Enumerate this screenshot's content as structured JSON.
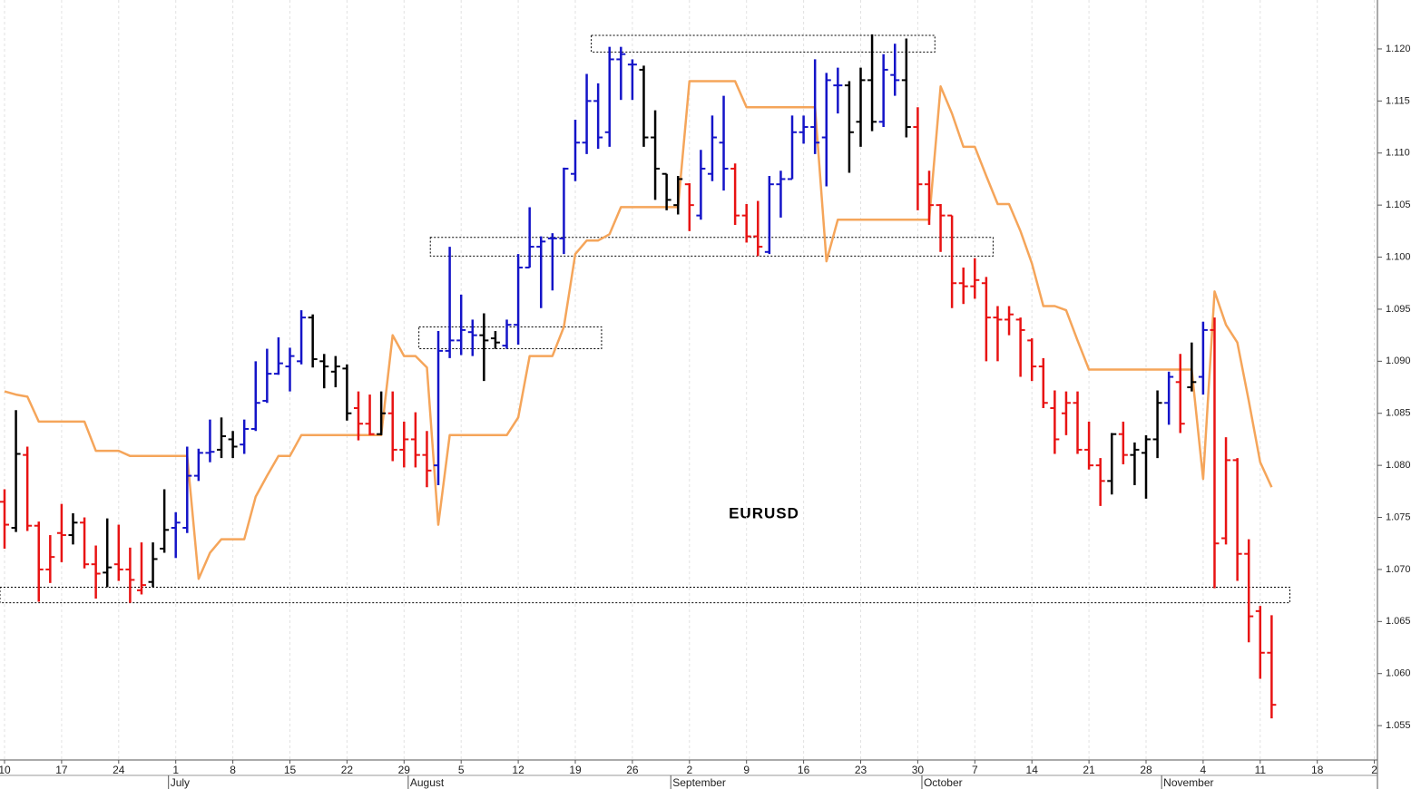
{
  "chart_data": {
    "type": "ohlc",
    "title": "EURUSD",
    "categories": [
      "10",
      null,
      null,
      null,
      null,
      "17",
      null,
      null,
      null,
      null,
      "24",
      null,
      null,
      null,
      null,
      "1",
      null,
      null,
      null,
      null,
      "8",
      null,
      null,
      null,
      null,
      "15",
      null,
      null,
      null,
      null,
      "22",
      null,
      null,
      null,
      null,
      "29",
      null,
      null,
      null,
      null,
      "5",
      null,
      null,
      null,
      null,
      "12",
      null,
      null,
      null,
      null,
      "19",
      null,
      null,
      null,
      null,
      "26",
      null,
      null,
      null,
      null,
      "2",
      null,
      null,
      null,
      null,
      "9",
      null,
      null,
      null,
      null,
      "16",
      null,
      null,
      null,
      null,
      "23",
      null,
      null,
      null,
      null,
      "30",
      null,
      null,
      null,
      null,
      "7",
      null,
      null,
      null,
      null,
      "14",
      null,
      null,
      null,
      null,
      "21",
      null,
      null,
      null,
      null,
      "28",
      null,
      null,
      null,
      null,
      "4",
      null,
      null,
      null,
      null,
      "11",
      null,
      null,
      null,
      null,
      "18",
      null,
      null,
      null,
      null,
      "2"
    ],
    "months": [
      null,
      null,
      null,
      null,
      null,
      null,
      null,
      null,
      null,
      null,
      null,
      null,
      null,
      null,
      null,
      "July",
      null,
      null,
      null,
      null,
      null,
      null,
      null,
      null,
      null,
      null,
      null,
      null,
      null,
      null,
      null,
      null,
      null,
      null,
      null,
      null,
      "August",
      null,
      null,
      null,
      null,
      null,
      null,
      null,
      null,
      null,
      null,
      null,
      null,
      null,
      null,
      null,
      null,
      null,
      null,
      null,
      null,
      null,
      null,
      "September",
      null,
      null,
      null,
      null,
      null,
      null,
      null,
      null,
      null,
      null,
      null,
      null,
      null,
      null,
      null,
      null,
      null,
      null,
      null,
      null,
      null,
      "October",
      null,
      null,
      null,
      null,
      null,
      null,
      null,
      null,
      null,
      null,
      null,
      null,
      null,
      null,
      null,
      null,
      null,
      null,
      null,
      null,
      "November",
      null,
      null,
      null,
      null,
      null,
      null,
      null,
      null,
      null,
      null,
      null,
      null,
      null,
      null,
      null,
      null,
      null,
      null
    ],
    "open": [
      1.0765,
      1.074,
      1.081,
      1.0742,
      1.07,
      1.0735,
      1.0733,
      1.0745,
      1.0705,
      1.0697,
      1.0705,
      1.07,
      1.068,
      1.0688,
      1.072,
      1.074,
      1.074,
      1.079,
      1.0812,
      1.0815,
      1.0825,
      1.082,
      1.0835,
      1.0862,
      1.0888,
      1.0895,
      1.09,
      1.0942,
      1.09,
      1.089,
      1.0893,
      1.0855,
      1.084,
      1.083,
      1.085,
      1.0815,
      1.0825,
      1.081,
      1.08,
      1.091,
      1.092,
      1.0928,
      1.0925,
      1.0922,
      1.0915,
      1.0935,
      1.099,
      1.101,
      1.1018,
      1.1018,
      1.108,
      1.111,
      1.115,
      1.112,
      1.119,
      1.1185,
      1.118,
      1.1115,
      1.108,
      1.105,
      1.107,
      1.104,
      1.108,
      1.111,
      1.1085,
      1.104,
      1.102,
      1.1005,
      1.107,
      1.1075,
      1.112,
      1.1125,
      1.1115,
      1.1165,
      1.1165,
      1.113,
      1.117,
      1.113,
      1.1175,
      1.117,
      1.1125,
      1.107,
      1.105,
      1.104,
      1.0975,
      1.0972,
      1.0975,
      1.0942,
      1.094,
      1.094,
      1.092,
      1.0895,
      1.0855,
      1.085,
      1.086,
      1.0815,
      1.08,
      1.0785,
      1.083,
      1.081,
      1.0812,
      1.0825,
      1.086,
      1.088,
      1.0875,
      1.0885,
      1.093,
      1.073,
      1.0805,
      1.0715,
      1.066,
      1.062,
      null,
      null,
      null,
      null,
      null,
      null,
      null,
      null,
      null
    ],
    "high": [
      1.0777,
      1.0853,
      1.0818,
      1.0746,
      1.0733,
      1.0763,
      1.0754,
      1.075,
      1.0723,
      1.0749,
      1.0743,
      1.0721,
      1.0726,
      1.0726,
      1.0777,
      1.0755,
      1.0818,
      1.0816,
      1.0844,
      1.0846,
      1.0833,
      1.0844,
      1.09,
      1.0912,
      1.0923,
      1.0913,
      1.0949,
      1.0945,
      1.0907,
      1.0905,
      1.0897,
      1.0871,
      1.0868,
      1.0871,
      1.0871,
      1.0842,
      1.0851,
      1.0833,
      1.0929,
      1.101,
      1.0964,
      1.094,
      1.0946,
      1.0929,
      1.094,
      1.1003,
      1.1048,
      1.102,
      1.1023,
      1.1086,
      1.1132,
      1.1176,
      1.1167,
      1.1202,
      1.1202,
      1.119,
      1.1184,
      1.1141,
      1.108,
      1.1078,
      1.1071,
      1.1103,
      1.1136,
      1.1155,
      1.109,
      1.1051,
      1.1054,
      1.1078,
      1.1083,
      1.1136,
      1.1136,
      1.119,
      1.1177,
      1.1182,
      1.1169,
      1.1182,
      1.1214,
      1.1195,
      1.1205,
      1.121,
      1.1144,
      1.1083,
      1.1051,
      1.104,
      1.099,
      1.0999,
      1.0981,
      1.0953,
      1.0953,
      1.0942,
      1.0922,
      1.0903,
      1.0872,
      1.0871,
      1.0871,
      1.0842,
      1.0807,
      1.0831,
      1.0842,
      1.0822,
      1.0829,
      1.0872,
      1.089,
      1.0907,
      1.0918,
      1.0938,
      1.0942,
      1.0827,
      1.0807,
      1.0729,
      1.0665,
      1.0656,
      null,
      null,
      null,
      null,
      null,
      null,
      null,
      null,
      null
    ],
    "low": [
      1.072,
      1.0736,
      1.0737,
      1.0669,
      1.0687,
      1.0707,
      1.0724,
      1.0701,
      1.0672,
      1.0683,
      1.0689,
      1.0668,
      1.0676,
      1.0683,
      1.0716,
      1.0711,
      1.0735,
      1.0785,
      1.0803,
      1.0807,
      1.0807,
      1.0811,
      1.0833,
      1.086,
      1.0887,
      1.0871,
      1.0897,
      1.0894,
      1.0874,
      1.0875,
      1.0843,
      1.0824,
      1.0829,
      1.0829,
      1.0804,
      1.0798,
      1.0798,
      1.0779,
      1.0781,
      1.0903,
      1.0906,
      1.0905,
      1.0881,
      1.0912,
      1.0912,
      1.0916,
      1.099,
      1.0951,
      1.0968,
      1.1003,
      1.1073,
      1.1099,
      1.1104,
      1.1106,
      1.1151,
      1.1151,
      1.1106,
      1.1055,
      1.1045,
      1.1041,
      1.1025,
      1.1036,
      1.1073,
      1.1064,
      1.1031,
      1.1014,
      1.1001,
      1.1003,
      1.1038,
      1.1075,
      1.1109,
      1.1099,
      1.1068,
      1.1138,
      1.1081,
      1.1106,
      1.1121,
      1.1125,
      1.1155,
      1.1115,
      1.1045,
      1.1031,
      1.1005,
      1.0951,
      1.0955,
      1.096,
      1.09,
      1.09,
      1.0925,
      1.0885,
      1.0881,
      1.0855,
      1.0811,
      1.0829,
      1.0811,
      1.0796,
      1.0761,
      1.0772,
      1.0801,
      1.0781,
      1.0768,
      1.0807,
      1.0839,
      1.0831,
      1.0871,
      1.0868,
      1.0682,
      1.0724,
      1.0689,
      1.063,
      1.0595,
      1.0557,
      null,
      null,
      null,
      null,
      null,
      null,
      null,
      null,
      null
    ],
    "close": [
      1.0743,
      1.0811,
      1.0742,
      1.07,
      1.0712,
      1.0733,
      1.0745,
      1.0705,
      1.0696,
      1.0702,
      1.07,
      1.069,
      1.0685,
      1.071,
      1.0738,
      1.0745,
      1.079,
      1.0812,
      1.0813,
      1.0828,
      1.0818,
      1.0835,
      1.086,
      1.0888,
      1.0898,
      1.0905,
      1.0942,
      1.0902,
      1.0895,
      1.0895,
      1.085,
      1.084,
      1.083,
      1.085,
      1.0815,
      1.0825,
      1.081,
      1.0795,
      1.091,
      1.092,
      1.093,
      1.0925,
      1.092,
      1.0918,
      1.0935,
      1.099,
      1.101,
      1.1015,
      1.1018,
      1.1085,
      1.111,
      1.115,
      1.1115,
      1.119,
      1.1195,
      1.1185,
      1.1115,
      1.1085,
      1.1055,
      1.1075,
      1.105,
      1.1085,
      1.1115,
      1.1085,
      1.104,
      1.102,
      1.101,
      1.107,
      1.1075,
      1.112,
      1.1125,
      1.111,
      1.117,
      1.1165,
      1.112,
      1.117,
      1.113,
      1.118,
      1.117,
      1.1125,
      1.107,
      1.105,
      1.104,
      1.0975,
      1.0972,
      1.0978,
      1.0942,
      1.094,
      1.0945,
      1.093,
      1.0895,
      1.086,
      1.0825,
      1.086,
      1.0815,
      1.08,
      1.0785,
      1.083,
      1.081,
      1.0815,
      1.0825,
      1.086,
      1.0885,
      1.084,
      1.088,
      1.093,
      1.0725,
      1.0805,
      1.0715,
      1.0655,
      1.062,
      1.057,
      null,
      null,
      null,
      null,
      null,
      null,
      null,
      null,
      null
    ],
    "colors": [
      "#e81313",
      "#000000",
      "#e81313",
      "#e81313",
      "#e81313",
      "#e81313",
      "#000000",
      "#e81313",
      "#e81313",
      "#000000",
      "#e81313",
      "#e81313",
      "#e81313",
      "#000000",
      "#000000",
      "#1414c8",
      "#1414c8",
      "#1414c8",
      "#1414c8",
      "#000000",
      "#000000",
      "#1414c8",
      "#1414c8",
      "#1414c8",
      "#1414c8",
      "#1414c8",
      "#1414c8",
      "#000000",
      "#000000",
      "#000000",
      "#000000",
      "#e81313",
      "#e81313",
      "#000000",
      "#e81313",
      "#e81313",
      "#e81313",
      "#e81313",
      "#1414c8",
      "#1414c8",
      "#1414c8",
      "#1414c8",
      "#000000",
      "#000000",
      "#1414c8",
      "#1414c8",
      "#1414c8",
      "#1414c8",
      "#1414c8",
      "#1414c8",
      "#1414c8",
      "#1414c8",
      "#1414c8",
      "#1414c8",
      "#1414c8",
      "#1414c8",
      "#000000",
      "#000000",
      "#000000",
      "#000000",
      "#e81313",
      "#1414c8",
      "#1414c8",
      "#1414c8",
      "#e81313",
      "#e81313",
      "#e81313",
      "#1414c8",
      "#1414c8",
      "#1414c8",
      "#1414c8",
      "#1414c8",
      "#1414c8",
      "#1414c8",
      "#000000",
      "#000000",
      "#000000",
      "#1414c8",
      "#1414c8",
      "#000000",
      "#e81313",
      "#e81313",
      "#e81313",
      "#e81313",
      "#e81313",
      "#e81313",
      "#e81313",
      "#e81313",
      "#e81313",
      "#e81313",
      "#e81313",
      "#e81313",
      "#e81313",
      "#e81313",
      "#e81313",
      "#e81313",
      "#e81313",
      "#000000",
      "#e81313",
      "#000000",
      "#000000",
      "#000000",
      "#1414c8",
      "#e81313",
      "#000000",
      "#1414c8",
      "#e81313",
      "#e81313",
      "#e81313",
      "#e81313",
      "#e81313",
      "#e81313",
      null,
      null,
      null,
      null,
      null,
      null,
      null,
      null,
      null
    ],
    "line": {
      "color": "#f5a55a",
      "values": [
        1.0871,
        1.0868,
        1.0866,
        1.0842,
        1.0842,
        1.0842,
        1.0842,
        1.0842,
        1.0814,
        1.0814,
        1.0814,
        1.0809,
        1.0809,
        1.0809,
        1.0809,
        1.0809,
        1.0809,
        1.0691,
        1.0716,
        1.0729,
        1.0729,
        1.0729,
        1.077,
        1.079,
        1.0809,
        1.0809,
        1.0829,
        1.0829,
        1.0829,
        1.0829,
        1.0829,
        1.0829,
        1.0829,
        1.0829,
        1.0925,
        1.0905,
        1.0905,
        1.0894,
        1.0743,
        1.0829,
        1.0829,
        1.0829,
        1.0829,
        1.0829,
        1.0829,
        1.0846,
        1.0905,
        1.0905,
        1.0905,
        1.0933,
        1.1003,
        1.1016,
        1.1016,
        1.1022,
        1.1048,
        1.1048,
        1.1048,
        1.1048,
        1.1048,
        1.1048,
        1.1169,
        1.1169,
        1.1169,
        1.1169,
        1.1169,
        1.1144,
        1.1144,
        1.1144,
        1.1144,
        1.1144,
        1.1144,
        1.1144,
        1.0996,
        1.1036,
        1.1036,
        1.1036,
        1.1036,
        1.1036,
        1.1036,
        1.1036,
        1.1036,
        1.1036,
        1.1164,
        1.1138,
        1.1106,
        1.1106,
        1.1078,
        1.1051,
        1.1051,
        1.1025,
        1.0994,
        1.0953,
        1.0953,
        1.0949,
        1.092,
        1.0892,
        1.0892,
        1.0892,
        1.0892,
        1.0892,
        1.0892,
        1.0892,
        1.0892,
        1.0892,
        1.0892,
        1.0787,
        1.0967,
        1.0935,
        1.0918,
        1.0862,
        1.0803,
        1.0779,
        null,
        null,
        null,
        null,
        null,
        null,
        null,
        null,
        null
      ]
    },
    "zones": [
      {
        "x": [
          51.4,
          81.5
        ],
        "y": [
          1.1197,
          1.1213
        ]
      },
      {
        "x": [
          37.3,
          86.6
        ],
        "y": [
          1.1001,
          1.1019
        ]
      },
      {
        "x": [
          36.3,
          52.3
        ],
        "y": [
          1.0912,
          1.0933
        ]
      },
      {
        "x": [
          -0.4,
          112.6
        ],
        "y": [
          1.0668,
          1.0683
        ]
      }
    ],
    "ylim": [
      1.0517,
      1.1247
    ],
    "yticks": [
      1.055,
      {
        "value": 1.06,
        "label": "1.060"
      },
      1.065,
      {
        "value": 1.07,
        "label": "1.070"
      },
      1.075,
      {
        "value": 1.08,
        "label": "1.080"
      },
      1.085,
      {
        "value": 1.09,
        "label": "1.090"
      },
      1.095,
      {
        "value": 1.1,
        "label": "1.100"
      },
      1.105,
      {
        "value": 1.11,
        "label": "1.110"
      },
      1.115,
      {
        "value": 1.12,
        "label": "1.120"
      }
    ],
    "grid": true
  }
}
